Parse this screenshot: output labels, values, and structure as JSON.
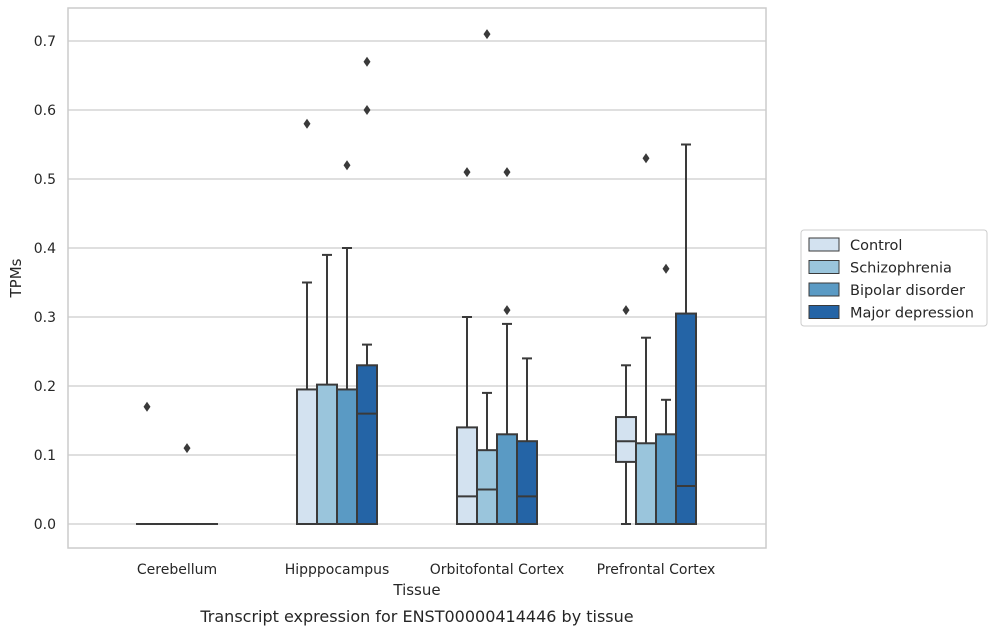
{
  "caption": "Transcript expression for ENST00000414446 by tissue",
  "chart_data": {
    "type": "box",
    "xlabel": "Tissue",
    "ylabel": "TPMs",
    "ylim": [
      -0.035,
      0.745
    ],
    "yticks": [
      0.0,
      0.1,
      0.2,
      0.3,
      0.4,
      0.5,
      0.6,
      0.7
    ],
    "ytick_labels": [
      "0.0",
      "0.1",
      "0.2",
      "0.3",
      "0.4",
      "0.5",
      "0.6",
      "0.7"
    ],
    "grid": true,
    "legend_position": "right",
    "categories": [
      "Cerebellum",
      "Hipppocampus",
      "Orbitofontal Cortex",
      "Prefrontal Cortex"
    ],
    "series": [
      {
        "name": "Control",
        "color": "#d3e2f0",
        "boxes": [
          {
            "whisker_low": 0,
            "q1": 0,
            "median": 0,
            "q3": 0,
            "whisker_high": 0,
            "outliers": [
              0.17
            ]
          },
          {
            "whisker_low": 0,
            "q1": 0,
            "median": 0,
            "q3": 0.195,
            "whisker_high": 0.35,
            "outliers": [
              0.58
            ]
          },
          {
            "whisker_low": 0,
            "q1": 0,
            "median": 0.04,
            "q3": 0.14,
            "whisker_high": 0.3,
            "outliers": [
              0.51
            ]
          },
          {
            "whisker_low": 0,
            "q1": 0.09,
            "median": 0.12,
            "q3": 0.155,
            "whisker_high": 0.23,
            "outliers": [
              0.31
            ]
          }
        ]
      },
      {
        "name": "Schizophrenia",
        "color": "#9ac5dc",
        "boxes": [
          {
            "whisker_low": 0,
            "q1": 0,
            "median": 0,
            "q3": 0,
            "whisker_high": 0,
            "outliers": []
          },
          {
            "whisker_low": 0,
            "q1": 0,
            "median": 0,
            "q3": 0.202,
            "whisker_high": 0.39,
            "outliers": []
          },
          {
            "whisker_low": 0,
            "q1": 0,
            "median": 0.05,
            "q3": 0.107,
            "whisker_high": 0.19,
            "outliers": [
              0.71
            ]
          },
          {
            "whisker_low": 0,
            "q1": 0,
            "median": 0,
            "q3": 0.117,
            "whisker_high": 0.27,
            "outliers": [
              0.53
            ]
          }
        ]
      },
      {
        "name": "Bipolar disorder",
        "color": "#5a9ac4",
        "boxes": [
          {
            "whisker_low": 0,
            "q1": 0,
            "median": 0,
            "q3": 0,
            "whisker_high": 0,
            "outliers": [
              0.11
            ]
          },
          {
            "whisker_low": 0,
            "q1": 0,
            "median": 0,
            "q3": 0.195,
            "whisker_high": 0.4,
            "outliers": [
              0.52
            ]
          },
          {
            "whisker_low": 0,
            "q1": 0,
            "median": 0,
            "q3": 0.13,
            "whisker_high": 0.29,
            "outliers": [
              0.31,
              0.51
            ]
          },
          {
            "whisker_low": 0,
            "q1": 0,
            "median": 0,
            "q3": 0.13,
            "whisker_high": 0.18,
            "outliers": [
              0.37
            ]
          }
        ]
      },
      {
        "name": "Major depression",
        "color": "#2464a6",
        "boxes": [
          {
            "whisker_low": 0,
            "q1": 0,
            "median": 0,
            "q3": 0,
            "whisker_high": 0,
            "outliers": []
          },
          {
            "whisker_low": 0,
            "q1": 0,
            "median": 0.16,
            "q3": 0.23,
            "whisker_high": 0.26,
            "outliers": [
              0.6,
              0.67
            ]
          },
          {
            "whisker_low": 0,
            "q1": 0,
            "median": 0.04,
            "q3": 0.12,
            "whisker_high": 0.24,
            "outliers": []
          },
          {
            "whisker_low": 0,
            "q1": 0,
            "median": 0.055,
            "q3": 0.305,
            "whisker_high": 0.55,
            "outliers": []
          }
        ]
      }
    ]
  }
}
